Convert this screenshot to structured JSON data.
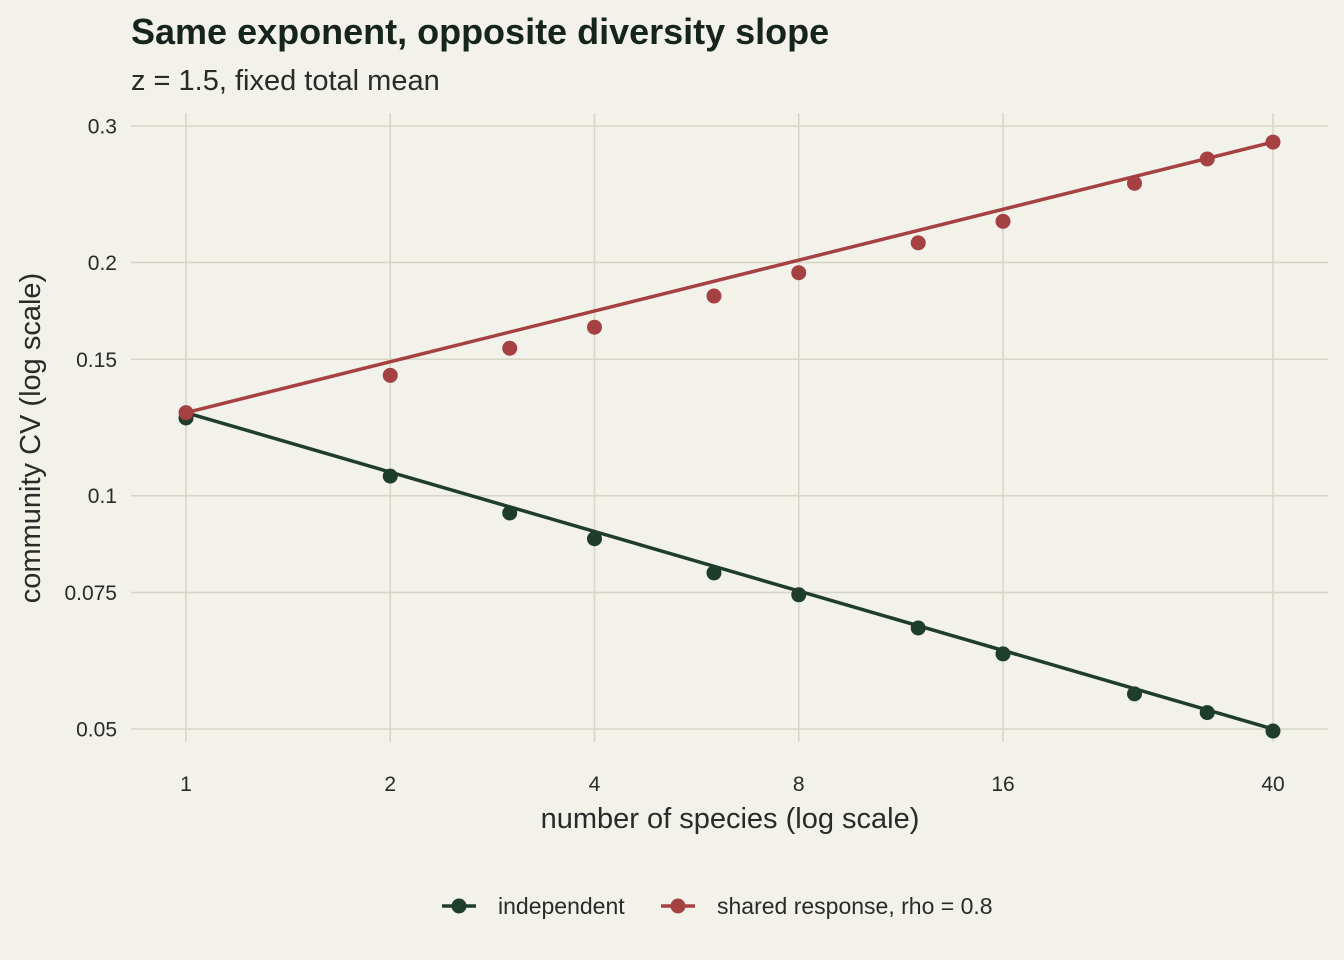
{
  "chart_data": {
    "type": "line",
    "title": "Same exponent, opposite diversity slope",
    "subtitle": "z = 1.5, fixed total mean",
    "xlabel": "number of species (log scale)",
    "ylabel": "community CV (log scale)",
    "x_scale": "log",
    "y_scale": "log",
    "xlim": [
      1,
      40
    ],
    "ylim": [
      0.05,
      0.3
    ],
    "x_ticks": [
      1,
      2,
      4,
      8,
      16,
      40
    ],
    "x_tick_labels": [
      "1",
      "2",
      "4",
      "8",
      "16",
      "40"
    ],
    "y_ticks": [
      0.05,
      0.075,
      0.1,
      0.15,
      0.2,
      0.3
    ],
    "y_tick_labels": [
      "0.05",
      "0.075",
      "0.1",
      "0.15",
      "0.2",
      "0.3"
    ],
    "grid": true,
    "legend_position": "bottom",
    "x": [
      1,
      2,
      3,
      4,
      6,
      8,
      12,
      16,
      25,
      32,
      40
    ],
    "series": [
      {
        "name": "independent",
        "color": "#1f3d2b",
        "fit": [
          0.128,
          0.05
        ],
        "values": [
          0.126,
          0.106,
          0.095,
          0.088,
          0.0795,
          0.0745,
          0.0675,
          0.0625,
          0.0555,
          0.0525,
          0.0497
        ]
      },
      {
        "name": "shared response, rho = 0.8",
        "color": "#a54142",
        "fit": [
          0.128,
          0.286
        ],
        "values": [
          0.128,
          0.143,
          0.155,
          0.165,
          0.181,
          0.194,
          0.212,
          0.226,
          0.253,
          0.272,
          0.286
        ]
      }
    ]
  }
}
